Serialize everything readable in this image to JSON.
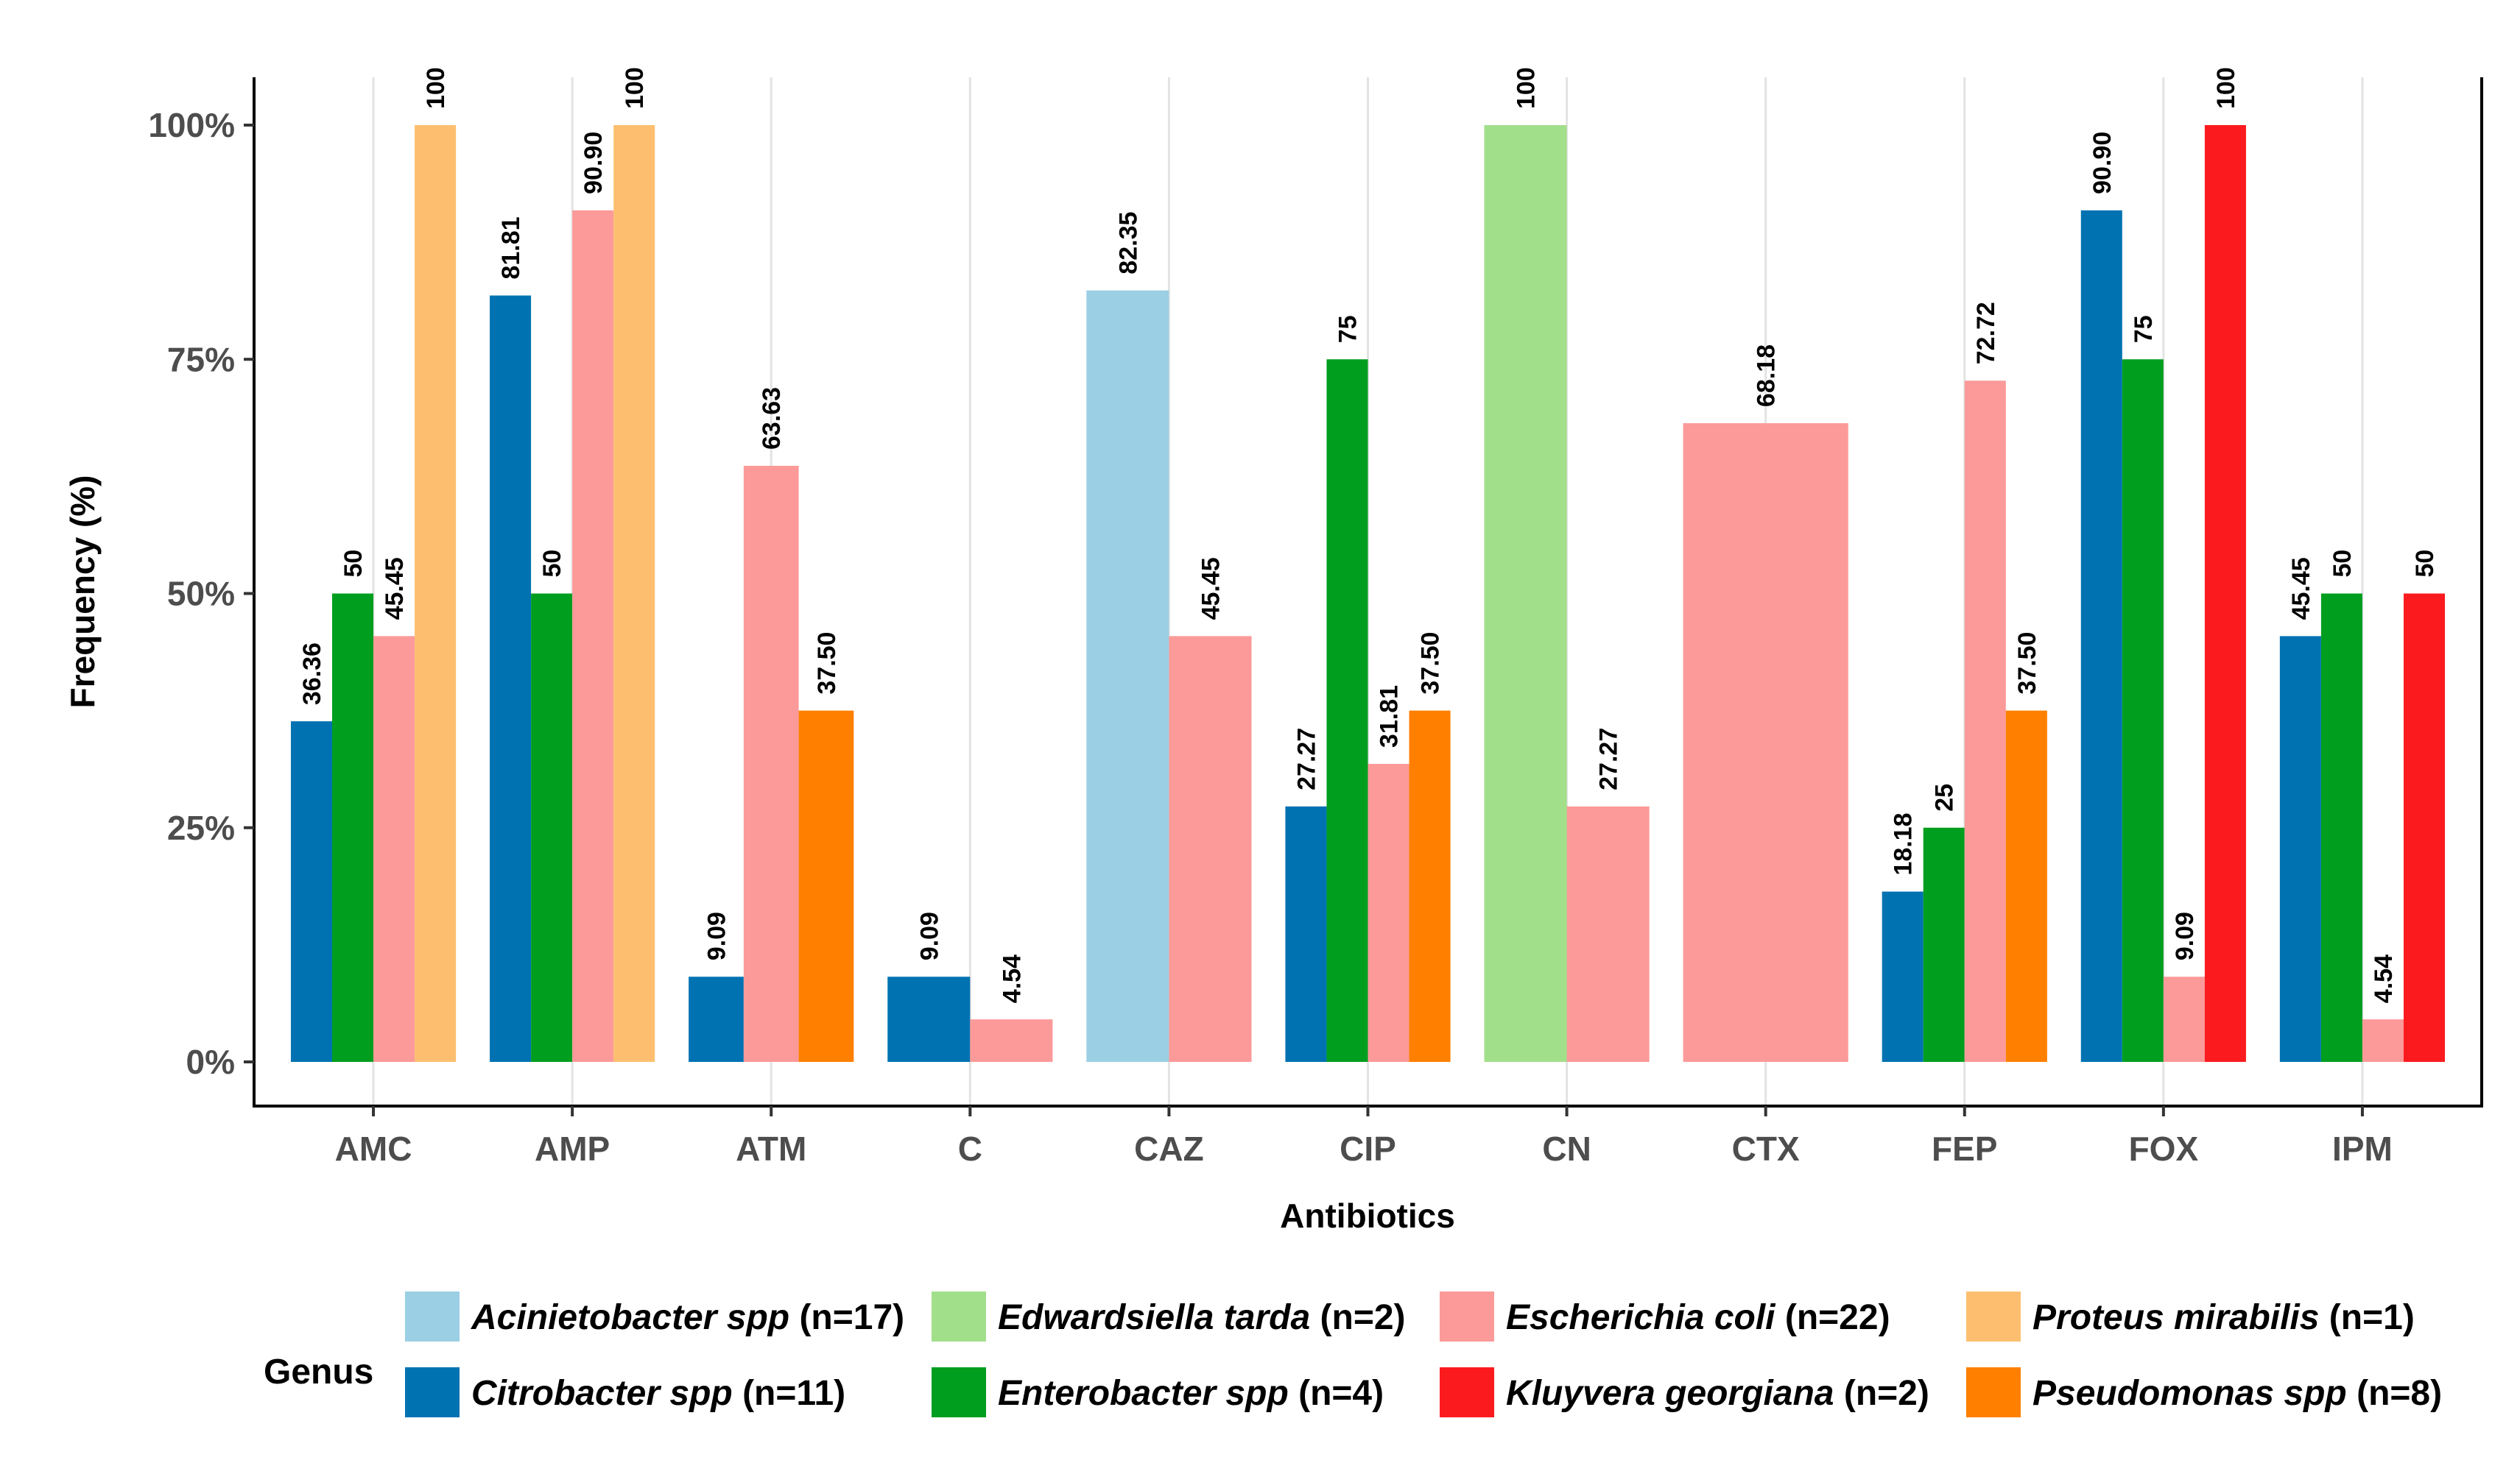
{
  "chart_data": {
    "type": "bar",
    "title": "",
    "xlabel": "Antibiotics",
    "ylabel": "Frequency (%)",
    "ylim": [
      0,
      100
    ],
    "y_ticks": [
      {
        "value": 0,
        "label": "0%"
      },
      {
        "value": 25,
        "label": "25%"
      },
      {
        "value": 50,
        "label": "50%"
      },
      {
        "value": 75,
        "label": "75%"
      },
      {
        "value": 100,
        "label": "100%"
      }
    ],
    "grid": true,
    "legend_position": "bottom",
    "legend_title": "Genus",
    "categories": [
      "AMC",
      "AMP",
      "ATM",
      "C",
      "CAZ",
      "CIP",
      "CN",
      "CTX",
      "FEP",
      "FOX",
      "IPM"
    ],
    "series": [
      {
        "key": "acin",
        "genus": "Acinietobacter spp",
        "count": "(n=17)",
        "color": "#9bcfe4",
        "values": [
          null,
          null,
          null,
          null,
          82.35,
          null,
          null,
          null,
          null,
          null,
          null
        ],
        "labels": [
          null,
          null,
          null,
          null,
          "82.35",
          null,
          null,
          null,
          null,
          null,
          null
        ]
      },
      {
        "key": "citro",
        "genus": "Citrobacter spp",
        "count": "(n=11)",
        "color": "#0072b2",
        "values": [
          36.36,
          81.81,
          9.09,
          9.09,
          null,
          27.27,
          null,
          null,
          18.18,
          90.9,
          45.45
        ],
        "labels": [
          "36.36",
          "81.81",
          "9.09",
          "9.09",
          null,
          "27.27",
          null,
          null,
          "18.18",
          "90.90",
          "45.45"
        ]
      },
      {
        "key": "edw",
        "genus": "Edwardsiella tarda",
        "count": "(n=2)",
        "color": "#a2df8a",
        "values": [
          null,
          null,
          null,
          null,
          null,
          null,
          100,
          null,
          null,
          null,
          null
        ],
        "labels": [
          null,
          null,
          null,
          null,
          null,
          null,
          "100",
          null,
          null,
          null,
          null
        ]
      },
      {
        "key": "entero",
        "genus": "Enterobacter spp",
        "count": "(n=4)",
        "color": "#009e1f",
        "values": [
          50,
          50,
          null,
          null,
          null,
          75,
          null,
          null,
          25,
          75,
          50
        ],
        "labels": [
          "50",
          "50",
          null,
          null,
          null,
          "75",
          null,
          null,
          "25",
          "75",
          "50"
        ]
      },
      {
        "key": "ecoli",
        "genus": "Escherichia coli",
        "count": "(n=22)",
        "color": "#fb9a99",
        "values": [
          45.45,
          90.9,
          63.63,
          4.54,
          45.45,
          31.81,
          27.27,
          68.18,
          72.72,
          9.09,
          4.54
        ],
        "labels": [
          "45.45",
          "90.90",
          "63.63",
          "4.54",
          "45.45",
          "31.81",
          "27.27",
          "68.18",
          "72.72",
          "9.09",
          "4.54"
        ]
      },
      {
        "key": "kluy",
        "genus": "Kluyvera georgiana",
        "count": "(n=2)",
        "color": "#fb1b1e",
        "values": [
          null,
          null,
          null,
          null,
          null,
          null,
          null,
          null,
          null,
          100,
          50
        ],
        "labels": [
          null,
          null,
          null,
          null,
          null,
          null,
          null,
          null,
          null,
          "100",
          "50"
        ]
      },
      {
        "key": "prot",
        "genus": "Proteus mirabilis",
        "count": "(n=1)",
        "color": "#fdbf6f",
        "values": [
          100,
          100,
          null,
          null,
          null,
          null,
          null,
          null,
          null,
          null,
          null
        ],
        "labels": [
          "100",
          "100",
          null,
          null,
          null,
          null,
          null,
          null,
          null,
          null,
          null
        ]
      },
      {
        "key": "pseudo",
        "genus": "Pseudomonas spp",
        "count": "(n=8)",
        "color": "#ff7f00",
        "values": [
          null,
          null,
          37.5,
          null,
          null,
          37.5,
          null,
          null,
          37.5,
          null,
          null
        ],
        "labels": [
          null,
          null,
          "37.50",
          null,
          null,
          "37.50",
          null,
          null,
          "37.50",
          null,
          null
        ]
      }
    ],
    "legend_rows": [
      [
        "acin",
        "edw",
        "ecoli",
        "prot"
      ],
      [
        "citro",
        "entero",
        "kluy",
        "pseudo"
      ]
    ]
  }
}
